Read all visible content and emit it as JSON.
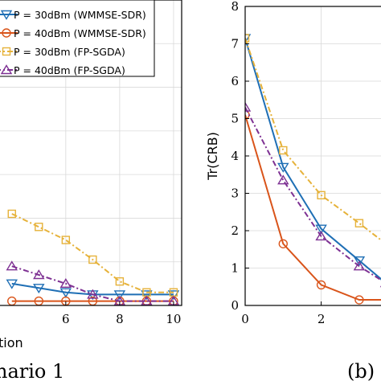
{
  "colors": {
    "blue": "#1f6fb5",
    "orange": "#d9541a",
    "yellow": "#e6b23a",
    "purple": "#7e3193"
  },
  "captions": {
    "left": "nario 1",
    "right": "(b)"
  },
  "chart_data": [
    {
      "type": "line",
      "title": "",
      "xlabel": "tion",
      "ylabel": "",
      "xlim": [
        3.5,
        10.3
      ],
      "ylim": [
        0,
        7
      ],
      "xticks": [
        "6",
        "8",
        "10"
      ],
      "xtick_values": [
        6,
        8,
        10
      ],
      "grid": true,
      "legend_position": "top-left",
      "series": [
        {
          "name": "P = 30dBm (WMMSE-SDR)",
          "color_key": "blue",
          "marker": "triangle-down",
          "style": "solid",
          "x": [
            4,
            5,
            6,
            7,
            8,
            9,
            10
          ],
          "y": [
            0.5,
            0.4,
            0.3,
            0.25,
            0.25,
            0.25,
            0.25
          ]
        },
        {
          "name": "P = 40dBm (WMMSE-SDR)",
          "color_key": "orange",
          "marker": "circle",
          "style": "solid",
          "x": [
            4,
            5,
            6,
            7,
            8,
            9,
            10
          ],
          "y": [
            0.1,
            0.1,
            0.1,
            0.1,
            0.1,
            0.1,
            0.1
          ]
        },
        {
          "name": "P = 30dBm (FP-SGDA)",
          "color_key": "yellow",
          "marker": "square",
          "style": "dashdot",
          "x": [
            4,
            5,
            6,
            7,
            8,
            9,
            10
          ],
          "y": [
            2.1,
            1.8,
            1.5,
            1.05,
            0.55,
            0.3,
            0.3
          ]
        },
        {
          "name": "P = 40dBm (FP-SGDA)",
          "color_key": "purple",
          "marker": "triangle-up",
          "style": "dashdot",
          "x": [
            4,
            5,
            6,
            7,
            8,
            9,
            10
          ],
          "y": [
            0.9,
            0.7,
            0.5,
            0.25,
            0.1,
            0.1,
            0.1
          ]
        }
      ]
    },
    {
      "type": "line",
      "title": "",
      "xlabel": "",
      "ylabel": "Tr(CRB)",
      "xlim": [
        0,
        3.7
      ],
      "ylim": [
        0,
        8
      ],
      "xticks": [
        "0",
        "2"
      ],
      "xtick_values": [
        0,
        2
      ],
      "yticks": [
        "0",
        "1",
        "2",
        "3",
        "4",
        "5",
        "6",
        "7",
        "8"
      ],
      "ytick_values": [
        0,
        1,
        2,
        3,
        4,
        5,
        6,
        7,
        8
      ],
      "grid": true,
      "series": [
        {
          "name": "P = 30dBm (WMMSE-SDR)",
          "color_key": "blue",
          "marker": "triangle-down",
          "style": "solid",
          "x": [
            0,
            1,
            2,
            3,
            3.7
          ],
          "y": [
            7.15,
            3.7,
            2.05,
            1.2,
            0.6
          ]
        },
        {
          "name": "P = 40dBm (WMMSE-SDR)",
          "color_key": "orange",
          "marker": "circle",
          "style": "solid",
          "x": [
            0,
            1,
            2,
            3,
            3.7
          ],
          "y": [
            5.1,
            1.65,
            0.55,
            0.15,
            0.15
          ]
        },
        {
          "name": "P = 30dBm (FP-SGDA)",
          "color_key": "yellow",
          "marker": "square",
          "style": "dashdot",
          "x": [
            0,
            1,
            2,
            3,
            3.7
          ],
          "y": [
            7.15,
            4.15,
            2.95,
            2.2,
            1.65
          ]
        },
        {
          "name": "P = 40dBm (FP-SGDA)",
          "color_key": "purple",
          "marker": "triangle-up",
          "style": "dashdot",
          "x": [
            0,
            1,
            2,
            3,
            3.7
          ],
          "y": [
            5.3,
            3.35,
            1.85,
            1.05,
            0.6
          ]
        }
      ]
    }
  ]
}
